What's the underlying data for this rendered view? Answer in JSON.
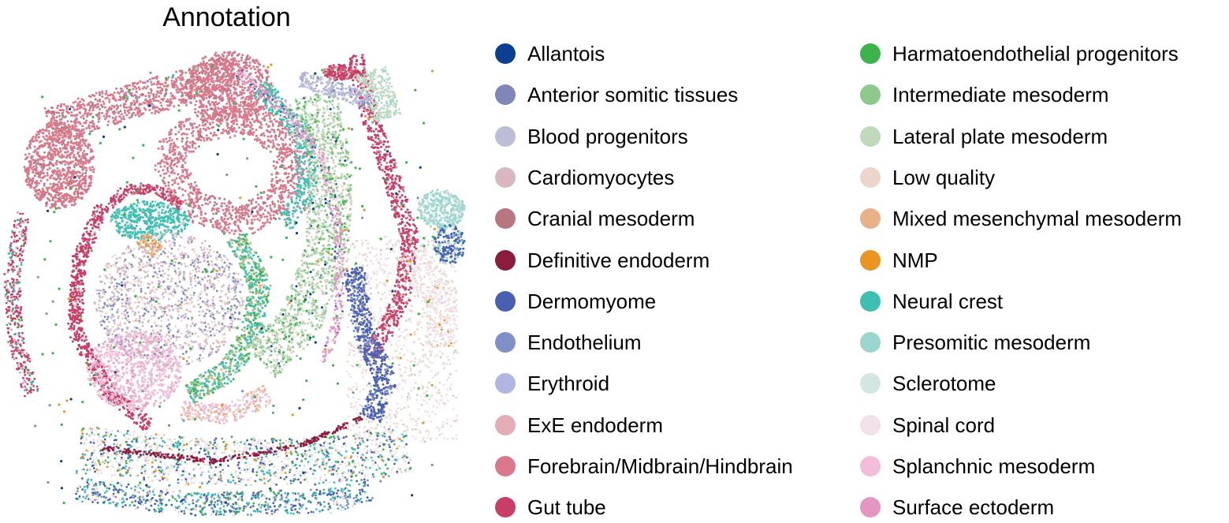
{
  "chart_data": {
    "type": "scatter",
    "title": "Annotation",
    "legend": "right, two columns",
    "grid": false,
    "axes": false,
    "categories": [
      {
        "name": "Allantois",
        "color": "#0a3f93"
      },
      {
        "name": "Anterior somitic tissues",
        "color": "#8086b6"
      },
      {
        "name": "Blood progenitors",
        "color": "#bcbdd6"
      },
      {
        "name": "Cardiomyocytes",
        "color": "#d8b7c0"
      },
      {
        "name": "Cranial mesoderm",
        "color": "#b77780"
      },
      {
        "name": "Definitive endoderm",
        "color": "#8a1c3e"
      },
      {
        "name": "Dermomyome",
        "color": "#4760b3"
      },
      {
        "name": "Endothelium",
        "color": "#7f8fc7"
      },
      {
        "name": "Erythroid",
        "color": "#b1b6e0"
      },
      {
        "name": "ExE endoderm",
        "color": "#e3adb6"
      },
      {
        "name": "Forebrain/Midbrain/Hindbrain",
        "color": "#d9798b"
      },
      {
        "name": "Gut tube",
        "color": "#c83e66"
      },
      {
        "name": "Harmatoendothelial progenitors",
        "color": "#3cb44b"
      },
      {
        "name": "Intermediate mesoderm",
        "color": "#8ec98c"
      },
      {
        "name": "Lateral plate mesoderm",
        "color": "#bed9bc"
      },
      {
        "name": "Low quality",
        "color": "#ecd5ca"
      },
      {
        "name": "Mixed mesenchymal mesoderm",
        "color": "#e8b187"
      },
      {
        "name": "NMP",
        "color": "#e89621"
      },
      {
        "name": "Neural crest",
        "color": "#3fbfb2"
      },
      {
        "name": "Presomitic mesoderm",
        "color": "#9bd6ce"
      },
      {
        "name": "Sclerotome",
        "color": "#d2e7e2"
      },
      {
        "name": "Spinal cord",
        "color": "#f1e1e9"
      },
      {
        "name": "Splanchnic mesoderm",
        "color": "#f1bdda"
      },
      {
        "name": "Surface ectoderm",
        "color": "#e496c0"
      }
    ]
  }
}
